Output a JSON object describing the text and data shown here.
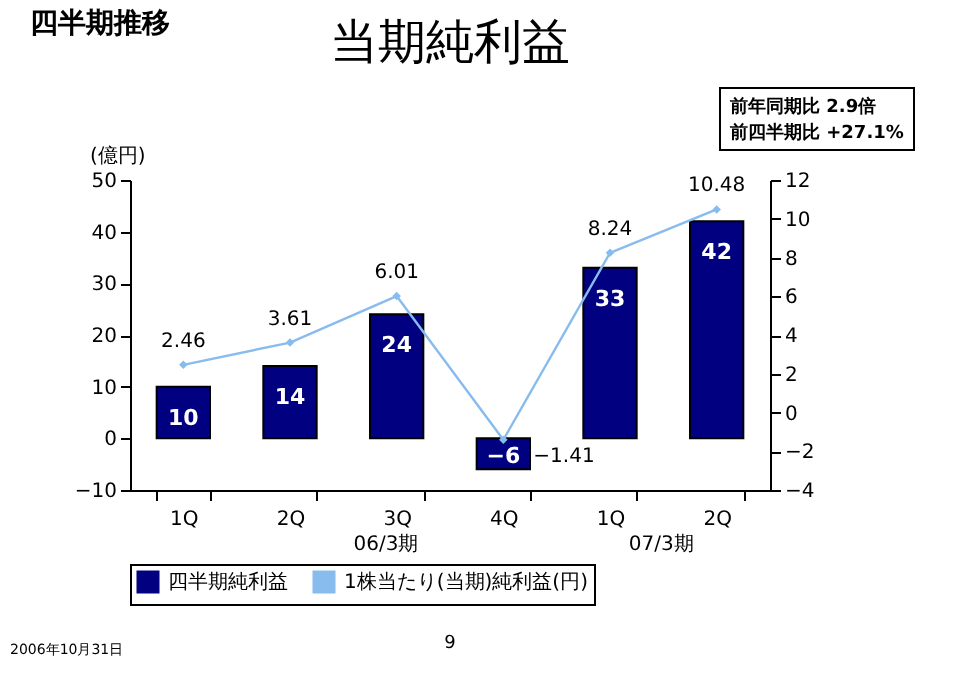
{
  "chart_data": {
    "type": "bar",
    "title": "当期純利益",
    "subtitle": "四半期推移",
    "ylabel": "(億円)",
    "categories": [
      "1Q",
      "2Q",
      "3Q",
      "4Q",
      "1Q",
      "2Q"
    ],
    "series": [
      {
        "name": "四半期純利益",
        "color": "#000080",
        "values": [
          10,
          14,
          24,
          -6,
          33,
          42
        ]
      },
      {
        "name": "1株当たり(当期)純利益(円)",
        "type": "line",
        "axis": "y2",
        "color": "#88bbee",
        "marker": "diamond",
        "values": [
          2.46,
          3.61,
          6.01,
          -1.41,
          8.24,
          10.48
        ]
      }
    ],
    "ylim": [
      -10,
      50
    ],
    "yticks": [
      -10,
      0,
      10,
      20,
      30,
      40,
      50
    ],
    "y2lim": [
      -4,
      12
    ],
    "y2ticks": [
      -4,
      -2,
      0,
      2,
      4,
      6,
      8,
      10,
      12
    ],
    "data_labels": true,
    "grid": false,
    "legend": "bottom",
    "annotations": [
      "06/3期",
      "07/3期",
      "前年同期比  2.9倍",
      "前四半期比  +27.1%",
      "2006年10月31日",
      "9"
    ]
  }
}
